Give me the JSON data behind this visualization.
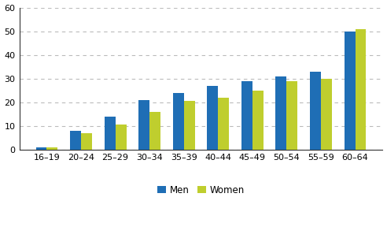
{
  "categories": [
    "16–19",
    "20–24",
    "25–29",
    "30–34",
    "35–39",
    "40–44",
    "45–49",
    "50–54",
    "55–59",
    "60–64"
  ],
  "men": [
    1,
    8,
    14,
    21,
    24,
    27,
    29,
    31,
    33,
    50
  ],
  "women": [
    1,
    7,
    10.5,
    16,
    20.5,
    22,
    25,
    29,
    30,
    51
  ],
  "men_color": "#1F6EB5",
  "women_color": "#BFCE2E",
  "ylim": [
    0,
    60
  ],
  "yticks": [
    0,
    10,
    20,
    30,
    40,
    50,
    60
  ],
  "legend_labels": [
    "Men",
    "Women"
  ],
  "bar_width": 0.32,
  "grid_color": "#bbbbbb",
  "background_color": "#ffffff",
  "tick_label_fontsize": 8,
  "legend_fontsize": 8.5,
  "spine_color": "#333333"
}
